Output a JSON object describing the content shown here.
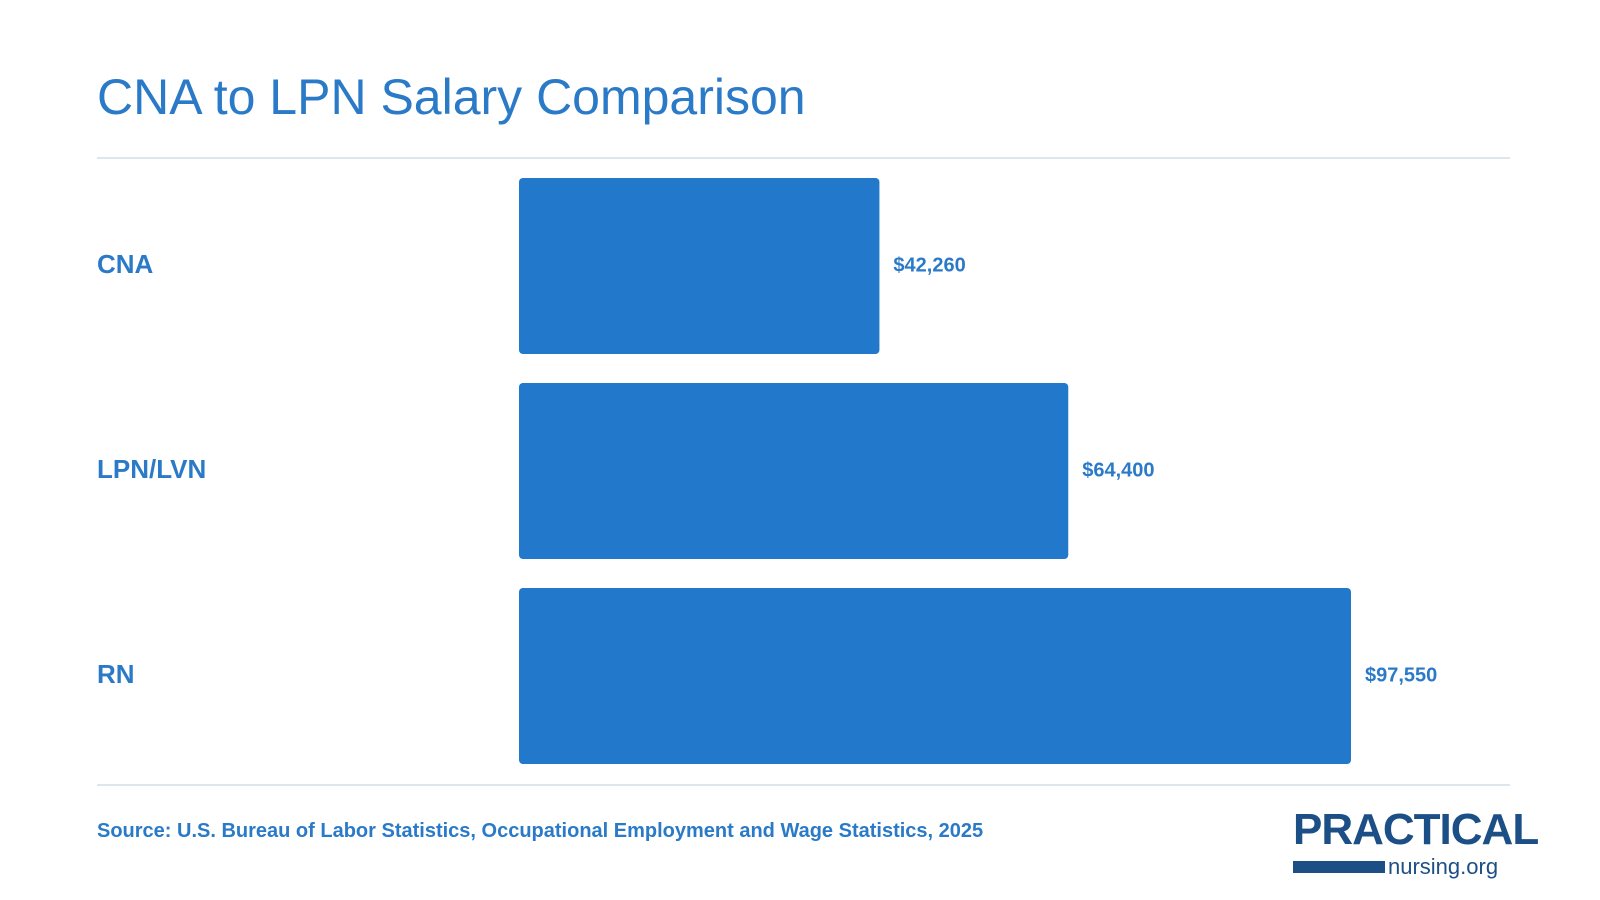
{
  "title": "CNA to LPN Salary Comparison",
  "source": "Source: U.S. Bureau of Labor Statistics, Occupational Employment and Wage Statistics, 2025",
  "logo": {
    "top": "PRACTICAL",
    "bottom": "nursing.org"
  },
  "colors": {
    "bar": "#2279cc",
    "text": "#2a7ac8",
    "logo": "#1c4f86",
    "rule": "#dce6ee"
  },
  "chart_data": {
    "type": "bar",
    "orientation": "horizontal",
    "title": "CNA to LPN Salary Comparison",
    "categories": [
      "CNA",
      "LPN/LVN",
      "RN"
    ],
    "values": [
      42260,
      64400,
      97550
    ],
    "value_labels": [
      "$42,260",
      "$64,400",
      "$97,550"
    ],
    "xlim": [
      0,
      97550
    ],
    "grid": false,
    "legend": "none"
  }
}
